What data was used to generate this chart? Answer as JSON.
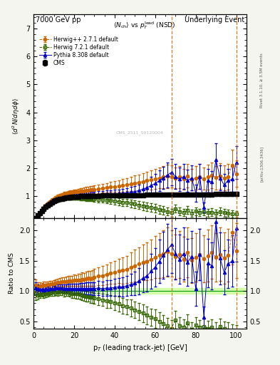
{
  "title_left": "7000 GeV pp",
  "title_right": "Underlying Event",
  "ylabel_main": "$\\langle d^2 N/d\\eta d\\phi \\rangle$",
  "ylabel_ratio": "Ratio to CMS",
  "xlabel": "p$_{T}$ (leading track-jet) [GeV]",
  "vline1": 68.0,
  "vline2": 100.0,
  "xlim": [
    0,
    105
  ],
  "ylim_main": [
    0.2,
    7.5
  ],
  "ylim_ratio": [
    0.38,
    2.2
  ],
  "yticks_main": [
    1,
    2,
    3,
    4,
    5,
    6,
    7
  ],
  "yticks_ratio": [
    0.5,
    1.0,
    1.5,
    2.0
  ],
  "cms_color": "#000000",
  "hpp_color": "#cc6600",
  "h7_color": "#336600",
  "py_color": "#0000cc",
  "bg_color": "#f5f5f0",
  "watermark": "CMS_2511_S9120004",
  "cms_x": [
    1,
    2,
    3,
    4,
    5,
    6,
    7,
    8,
    9,
    10,
    11,
    12,
    13,
    14,
    15,
    16,
    17,
    18,
    19,
    20,
    21,
    22,
    23,
    24,
    25,
    26,
    27,
    28,
    29,
    30,
    32,
    34,
    36,
    38,
    40,
    42,
    44,
    46,
    48,
    50,
    52,
    54,
    56,
    58,
    60,
    62,
    64,
    66,
    68,
    70,
    72,
    74,
    76,
    78,
    80,
    82,
    84,
    86,
    88,
    90,
    92,
    94,
    96,
    98,
    100
  ],
  "cms_y": [
    0.22,
    0.3,
    0.38,
    0.46,
    0.54,
    0.61,
    0.67,
    0.72,
    0.77,
    0.81,
    0.84,
    0.87,
    0.89,
    0.91,
    0.93,
    0.94,
    0.95,
    0.96,
    0.97,
    0.97,
    0.98,
    0.98,
    0.99,
    0.99,
    1.0,
    1.0,
    1.0,
    1.01,
    1.01,
    1.01,
    1.01,
    1.02,
    1.02,
    1.02,
    1.02,
    1.02,
    1.03,
    1.03,
    1.03,
    1.03,
    1.03,
    1.03,
    1.04,
    1.04,
    1.04,
    1.04,
    1.04,
    1.04,
    1.05,
    1.05,
    1.05,
    1.05,
    1.05,
    1.05,
    1.06,
    1.06,
    1.06,
    1.06,
    1.06,
    1.07,
    1.07,
    1.07,
    1.07,
    1.07,
    1.08
  ],
  "cms_yerr": [
    0.01,
    0.01,
    0.01,
    0.01,
    0.01,
    0.01,
    0.01,
    0.01,
    0.01,
    0.01,
    0.01,
    0.01,
    0.01,
    0.01,
    0.01,
    0.01,
    0.01,
    0.01,
    0.01,
    0.01,
    0.01,
    0.01,
    0.01,
    0.01,
    0.01,
    0.01,
    0.01,
    0.01,
    0.01,
    0.01,
    0.01,
    0.02,
    0.02,
    0.02,
    0.02,
    0.02,
    0.02,
    0.02,
    0.02,
    0.03,
    0.03,
    0.03,
    0.03,
    0.03,
    0.03,
    0.04,
    0.04,
    0.04,
    0.04,
    0.04,
    0.05,
    0.05,
    0.05,
    0.05,
    0.05,
    0.05,
    0.06,
    0.06,
    0.06,
    0.06,
    0.06,
    0.06,
    0.06,
    0.06,
    0.07
  ],
  "hpp_x": [
    1,
    2,
    3,
    4,
    5,
    6,
    7,
    8,
    9,
    10,
    11,
    12,
    13,
    14,
    15,
    16,
    17,
    18,
    19,
    20,
    21,
    22,
    23,
    24,
    25,
    26,
    27,
    28,
    29,
    30,
    32,
    34,
    36,
    38,
    40,
    42,
    44,
    46,
    48,
    50,
    52,
    54,
    56,
    58,
    60,
    62,
    64,
    66,
    68,
    70,
    72,
    74,
    76,
    78,
    80,
    82,
    84,
    86,
    88,
    90,
    92,
    94,
    96,
    98,
    100
  ],
  "hpp_y": [
    0.24,
    0.32,
    0.41,
    0.5,
    0.59,
    0.67,
    0.74,
    0.8,
    0.86,
    0.91,
    0.95,
    0.99,
    1.02,
    1.05,
    1.07,
    1.09,
    1.11,
    1.12,
    1.13,
    1.14,
    1.15,
    1.16,
    1.17,
    1.18,
    1.19,
    1.2,
    1.21,
    1.22,
    1.23,
    1.24,
    1.26,
    1.28,
    1.3,
    1.32,
    1.34,
    1.36,
    1.38,
    1.4,
    1.43,
    1.46,
    1.49,
    1.52,
    1.55,
    1.58,
    1.62,
    1.65,
    1.68,
    1.71,
    1.7,
    1.65,
    1.68,
    1.6,
    1.72,
    1.58,
    1.65,
    1.7,
    1.62,
    1.68,
    1.74,
    1.66,
    1.72,
    1.65,
    1.7,
    2.1,
    1.8
  ],
  "hpp_yerr": [
    0.02,
    0.02,
    0.02,
    0.02,
    0.03,
    0.03,
    0.03,
    0.04,
    0.04,
    0.04,
    0.05,
    0.05,
    0.06,
    0.06,
    0.07,
    0.07,
    0.08,
    0.08,
    0.08,
    0.09,
    0.09,
    0.1,
    0.1,
    0.11,
    0.11,
    0.12,
    0.12,
    0.13,
    0.13,
    0.14,
    0.15,
    0.16,
    0.17,
    0.18,
    0.19,
    0.2,
    0.22,
    0.23,
    0.25,
    0.27,
    0.28,
    0.3,
    0.32,
    0.34,
    0.36,
    0.38,
    0.4,
    0.42,
    0.4,
    0.38,
    0.4,
    0.38,
    0.42,
    0.38,
    0.42,
    0.44,
    0.4,
    0.44,
    0.46,
    0.42,
    0.46,
    0.44,
    0.46,
    0.55,
    0.48
  ],
  "h7_x": [
    1,
    2,
    3,
    4,
    5,
    6,
    7,
    8,
    9,
    10,
    11,
    12,
    13,
    14,
    15,
    16,
    17,
    18,
    19,
    20,
    21,
    22,
    23,
    24,
    25,
    26,
    27,
    28,
    29,
    30,
    32,
    34,
    36,
    38,
    40,
    42,
    44,
    46,
    48,
    50,
    52,
    54,
    56,
    58,
    60,
    62,
    64,
    66,
    68,
    70,
    72,
    74,
    76,
    78,
    80,
    82,
    84,
    86,
    88,
    90,
    92,
    94,
    96,
    98,
    100
  ],
  "h7_y": [
    0.21,
    0.28,
    0.36,
    0.44,
    0.51,
    0.58,
    0.64,
    0.7,
    0.75,
    0.79,
    0.82,
    0.85,
    0.88,
    0.9,
    0.91,
    0.92,
    0.93,
    0.93,
    0.93,
    0.93,
    0.93,
    0.93,
    0.93,
    0.92,
    0.92,
    0.91,
    0.91,
    0.9,
    0.9,
    0.89,
    0.88,
    0.87,
    0.85,
    0.84,
    0.82,
    0.8,
    0.78,
    0.76,
    0.74,
    0.71,
    0.68,
    0.65,
    0.62,
    0.59,
    0.56,
    0.52,
    0.48,
    0.44,
    0.4,
    0.55,
    0.45,
    0.42,
    0.5,
    0.38,
    0.46,
    0.42,
    0.44,
    0.4,
    0.42,
    0.38,
    0.44,
    0.4,
    0.38,
    0.36,
    0.35
  ],
  "h7_yerr": [
    0.02,
    0.02,
    0.02,
    0.02,
    0.03,
    0.03,
    0.03,
    0.04,
    0.04,
    0.04,
    0.04,
    0.05,
    0.05,
    0.05,
    0.06,
    0.06,
    0.06,
    0.06,
    0.07,
    0.07,
    0.07,
    0.07,
    0.08,
    0.08,
    0.08,
    0.08,
    0.09,
    0.09,
    0.09,
    0.09,
    0.1,
    0.1,
    0.11,
    0.11,
    0.12,
    0.12,
    0.13,
    0.13,
    0.14,
    0.14,
    0.14,
    0.15,
    0.15,
    0.15,
    0.16,
    0.15,
    0.15,
    0.14,
    0.14,
    0.15,
    0.14,
    0.13,
    0.14,
    0.13,
    0.14,
    0.13,
    0.13,
    0.13,
    0.14,
    0.13,
    0.14,
    0.13,
    0.13,
    0.12,
    0.12
  ],
  "py_x": [
    1,
    2,
    3,
    4,
    5,
    6,
    7,
    8,
    9,
    10,
    11,
    12,
    13,
    14,
    15,
    16,
    17,
    18,
    19,
    20,
    21,
    22,
    23,
    24,
    25,
    26,
    27,
    28,
    29,
    30,
    32,
    34,
    36,
    38,
    40,
    42,
    44,
    46,
    48,
    50,
    52,
    54,
    56,
    58,
    60,
    62,
    64,
    66,
    68,
    70,
    72,
    74,
    76,
    78,
    80,
    82,
    84,
    86,
    88,
    90,
    92,
    94,
    96,
    98,
    100
  ],
  "py_y": [
    0.23,
    0.31,
    0.39,
    0.47,
    0.55,
    0.63,
    0.69,
    0.75,
    0.8,
    0.84,
    0.88,
    0.91,
    0.93,
    0.95,
    0.97,
    0.98,
    0.99,
    1.0,
    1.01,
    1.01,
    1.02,
    1.02,
    1.03,
    1.03,
    1.04,
    1.04,
    1.04,
    1.05,
    1.05,
    1.05,
    1.06,
    1.06,
    1.07,
    1.07,
    1.08,
    1.09,
    1.1,
    1.12,
    1.14,
    1.16,
    1.2,
    1.25,
    1.3,
    1.38,
    1.45,
    1.55,
    1.65,
    1.75,
    1.85,
    1.7,
    1.6,
    1.7,
    1.55,
    1.65,
    1.1,
    1.7,
    0.6,
    1.55,
    1.5,
    2.3,
    1.65,
    1.4,
    1.55,
    1.6,
    2.2
  ],
  "py_yerr": [
    0.02,
    0.02,
    0.02,
    0.02,
    0.03,
    0.03,
    0.03,
    0.04,
    0.04,
    0.04,
    0.05,
    0.05,
    0.05,
    0.06,
    0.06,
    0.06,
    0.07,
    0.07,
    0.07,
    0.08,
    0.08,
    0.08,
    0.09,
    0.09,
    0.09,
    0.1,
    0.1,
    0.1,
    0.11,
    0.11,
    0.12,
    0.12,
    0.13,
    0.13,
    0.14,
    0.15,
    0.16,
    0.17,
    0.18,
    0.2,
    0.22,
    0.24,
    0.27,
    0.3,
    0.33,
    0.37,
    0.4,
    0.44,
    0.48,
    0.44,
    0.42,
    0.44,
    0.4,
    0.44,
    0.3,
    0.44,
    0.18,
    0.42,
    0.4,
    0.6,
    0.45,
    0.38,
    0.42,
    0.44,
    0.58
  ]
}
